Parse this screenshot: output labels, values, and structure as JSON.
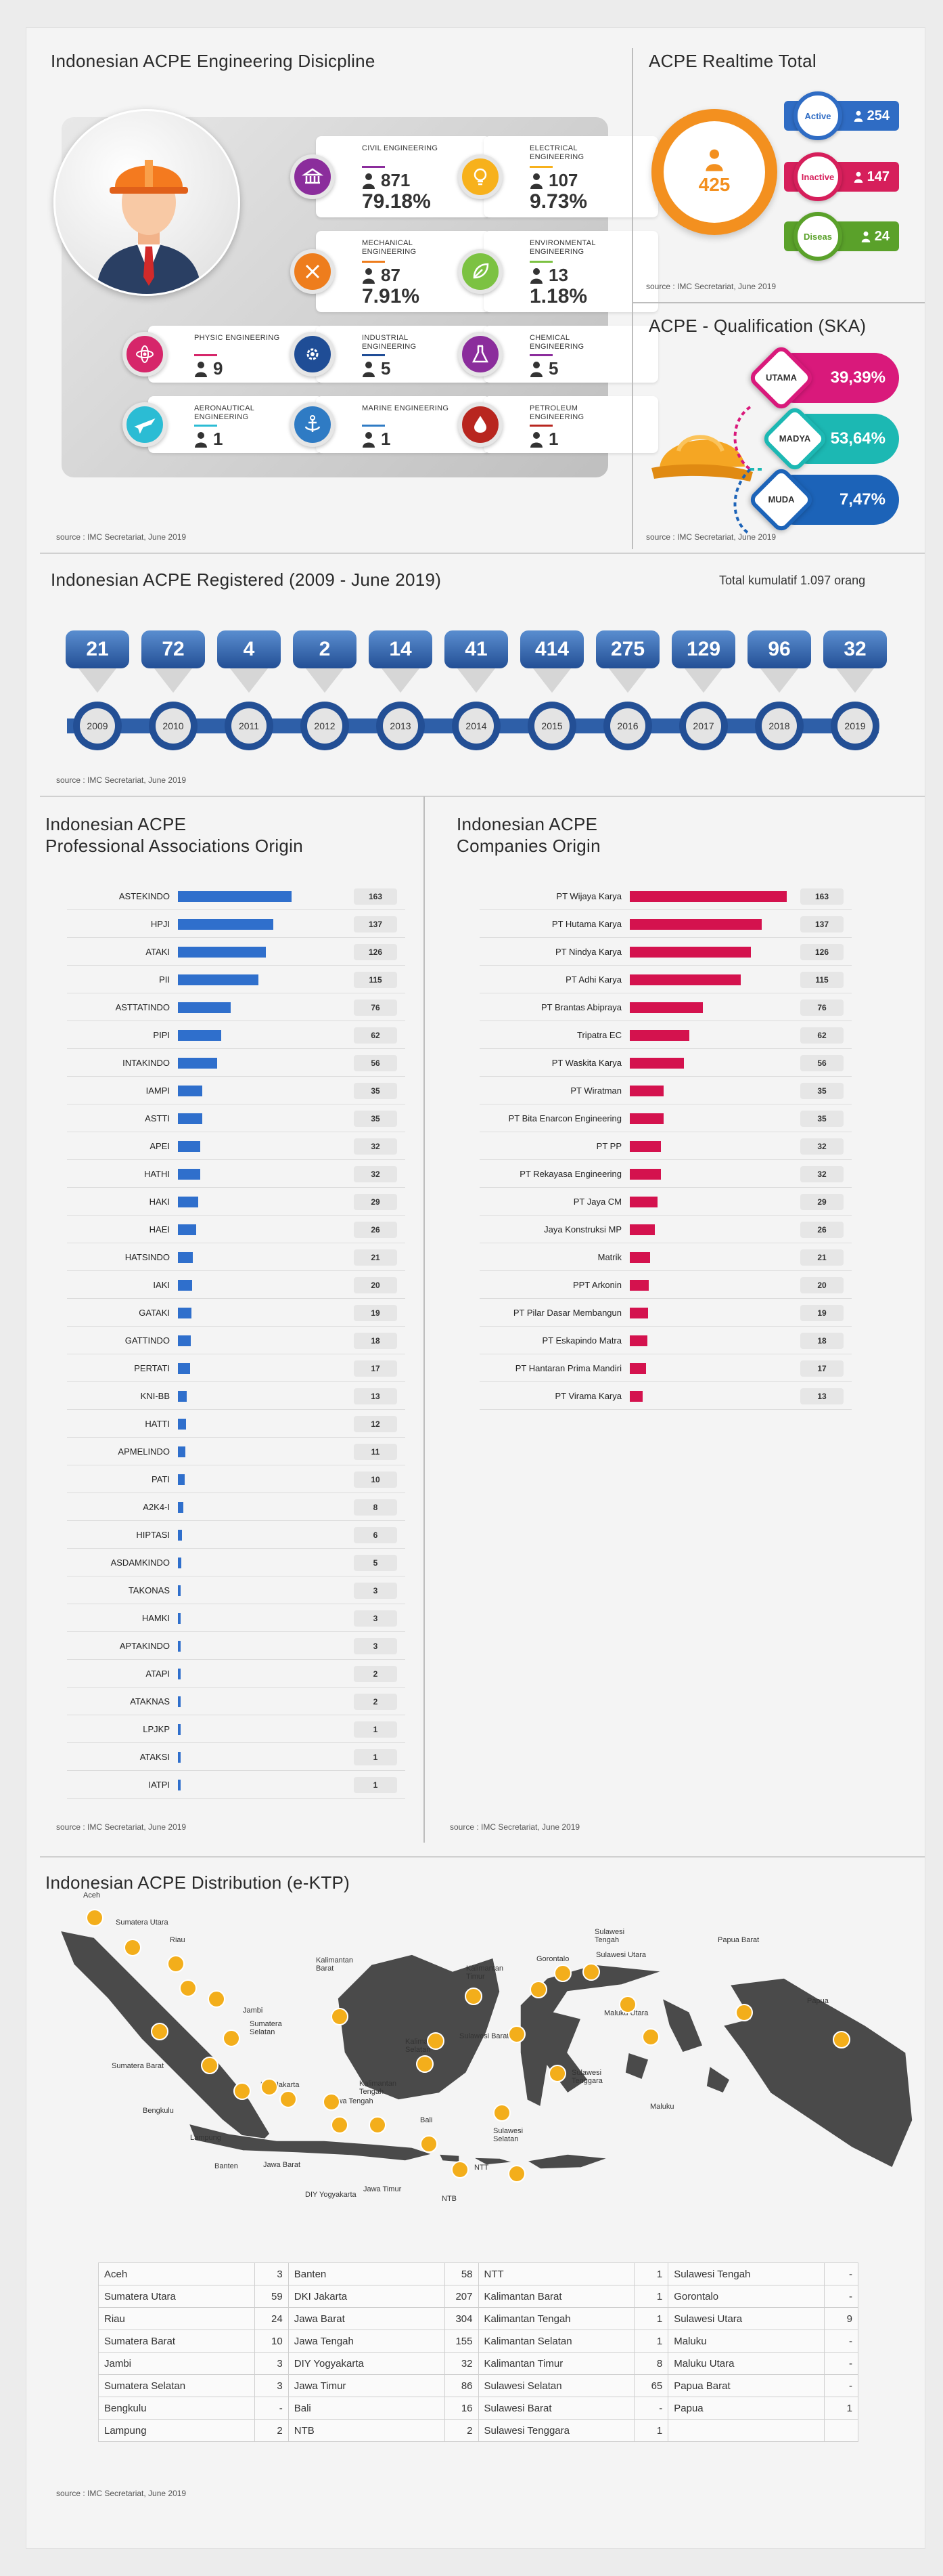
{
  "disciplines": {
    "title": "Indonesian ACPE Engineering Disicpline",
    "source": "source : IMC Secretariat, June 2019",
    "items": [
      {
        "name": "CIVIL ENGINEERING",
        "count": "871",
        "pct": "79.18%",
        "color": "#8b2d9c",
        "icon": "civil-icon"
      },
      {
        "name": "ELECTRICAL ENGINEERING",
        "count": "107",
        "pct": "9.73%",
        "color": "#f7b11c",
        "icon": "lightbulb-icon"
      },
      {
        "name": "MECHANICAL ENGINEERING",
        "count": "87",
        "pct": "7.91%",
        "color": "#ee7d1d",
        "icon": "tools-icon"
      },
      {
        "name": "ENVIRONMENTAL ENGINEERING",
        "count": "13",
        "pct": "1.18%",
        "color": "#7cc242",
        "icon": "leaf-icon"
      },
      {
        "name": "PHYSIC ENGINEERING",
        "count": "9",
        "pct": "",
        "color": "#d6266a",
        "icon": "atom-icon"
      },
      {
        "name": "INDUSTRIAL ENGINEERING",
        "count": "5",
        "pct": "",
        "color": "#1f4d96",
        "icon": "gear-icon"
      },
      {
        "name": "CHEMICAL ENGINEERING",
        "count": "5",
        "pct": "",
        "color": "#8b2d9c",
        "icon": "flask-icon"
      },
      {
        "name": "AERONAUTICAL ENGINEERING",
        "count": "1",
        "pct": "",
        "color": "#2bbcd4",
        "icon": "plane-icon"
      },
      {
        "name": "MARINE ENGINEERING",
        "count": "1",
        "pct": "",
        "color": "#2f7bc4",
        "icon": "anchor-icon"
      },
      {
        "name": "PETROLEUM ENGINEERING",
        "count": "1",
        "pct": "",
        "color": "#b8261f",
        "icon": "drop-icon"
      }
    ]
  },
  "realtime": {
    "title": "ACPE Realtime Total",
    "total": "425",
    "source": "source : IMC Secretariat, June 2019",
    "status": [
      {
        "label": "Active",
        "value": "254",
        "color": "#2f6cc4"
      },
      {
        "label": "Inactive",
        "value": "147",
        "color": "#d61f5b"
      },
      {
        "label": "Diseas",
        "value": "24",
        "color": "#5aa12a"
      }
    ]
  },
  "qualification": {
    "title": "ACPE - Qualification (SKA)",
    "source": "source : IMC Secretariat, June 2019",
    "levels": [
      {
        "label": "UTAMA",
        "value": "39,39%",
        "color": "#d9197b"
      },
      {
        "label": "MADYA",
        "value": "53,64%",
        "color": "#1cb8b3"
      },
      {
        "label": "MUDA",
        "value": "7,47%",
        "color": "#1c63b8"
      }
    ]
  },
  "registered": {
    "title": "Indonesian ACPE Registered (2009 - June 2019)",
    "cumulative": "Total kumulatif 1.097 orang",
    "source": "source : IMC Secretariat, June 2019"
  },
  "associations": {
    "title_line1": "Indonesian ACPE",
    "title_line2": "Professional Associations Origin",
    "source": "source : IMC Secretariat, June 2019",
    "color": "#2f6fcc"
  },
  "companies": {
    "title_line1": "Indonesian ACPE",
    "title_line2": "Companies Origin",
    "source": "source : IMC Secretariat, June 2019",
    "color": "#d4124e"
  },
  "distribution": {
    "title": "Indonesian ACPE Distribution (e-KTP)",
    "source": "source : IMC Secretariat, June 2019",
    "map_labels": [
      "Aceh",
      "Sumatera Utara",
      "Riau",
      "Jambi",
      "Sumatera Selatan",
      "Sumatera Barat",
      "Bengkulu",
      "Lampung",
      "Banten",
      "DKI Jakarta",
      "Jawa Barat",
      "Jawa Tengah",
      "DIY Yogyakarta",
      "Jawa Timur",
      "Bali",
      "NTB",
      "NTT",
      "Kalimantan Barat",
      "Kalimantan Tengah",
      "Kalimantan Selatan",
      "Kalimantan Timur",
      "Sulawesi Tengah",
      "Gorontalo",
      "Sulawesi Utara",
      "Sulawesi Barat",
      "Sulawesi Tenggara",
      "Sulawesi Selatan",
      "Maluku Utara",
      "Maluku",
      "Papua Barat",
      "Papua"
    ],
    "table": [
      [
        [
          "Aceh",
          "3"
        ],
        [
          "Banten",
          "58"
        ],
        [
          "NTT",
          "1"
        ],
        [
          "Sulawesi Tengah",
          "-"
        ]
      ],
      [
        [
          "Sumatera Utara",
          "59"
        ],
        [
          "DKI Jakarta",
          "207"
        ],
        [
          "Kalimantan Barat",
          "1"
        ],
        [
          "Gorontalo",
          "-"
        ]
      ],
      [
        [
          "Riau",
          "24"
        ],
        [
          "Jawa Barat",
          "304"
        ],
        [
          "Kalimantan Tengah",
          "1"
        ],
        [
          "Sulawesi Utara",
          "9"
        ]
      ],
      [
        [
          "Sumatera Barat",
          "10"
        ],
        [
          "Jawa Tengah",
          "155"
        ],
        [
          "Kalimantan Selatan",
          "1"
        ],
        [
          "Maluku",
          "-"
        ]
      ],
      [
        [
          "Jambi",
          "3"
        ],
        [
          "DIY Yogyakarta",
          "32"
        ],
        [
          "Kalimantan Timur",
          "8"
        ],
        [
          "Maluku Utara",
          "-"
        ]
      ],
      [
        [
          "Sumatera Selatan",
          "3"
        ],
        [
          "Jawa Timur",
          "86"
        ],
        [
          "Sulawesi Selatan",
          "65"
        ],
        [
          "Papua Barat",
          "-"
        ]
      ],
      [
        [
          "Bengkulu",
          "-"
        ],
        [
          "Bali",
          "16"
        ],
        [
          "Sulawesi Barat",
          "-"
        ],
        [
          "Papua",
          "1"
        ]
      ],
      [
        [
          "Lampung",
          "2"
        ],
        [
          "NTB",
          "2"
        ],
        [
          "Sulawesi Tenggara",
          "1"
        ],
        [
          "",
          ""
        ]
      ]
    ]
  },
  "chart_data": [
    {
      "type": "bar",
      "categories": [
        "2009",
        "2010",
        "2011",
        "2012",
        "2013",
        "2014",
        "2015",
        "2016",
        "2017",
        "2018",
        "2019"
      ],
      "values": [
        21,
        72,
        4,
        2,
        14,
        41,
        414,
        275,
        129,
        96,
        32
      ]
    },
    {
      "type": "bar",
      "categories": [
        "ASTEKINDO",
        "HPJI",
        "ATAKI",
        "PII",
        "ASTTATINDO",
        "PIPI",
        "INTAKINDO",
        "IAMPI",
        "ASTTI",
        "APEI",
        "HATHI",
        "HAKI",
        "HAEI",
        "HATSINDO",
        "IAKI",
        "GATAKI",
        "GATTINDO",
        "PERTATI",
        "KNI-BB",
        "HATTI",
        "APMELINDO",
        "PATI",
        "A2K4-I",
        "HIPTASI",
        "ASDAMKINDO",
        "TAKONAS",
        "HAMKI",
        "APTAKINDO",
        "ATAPI",
        "ATAKNAS",
        "LPJKP",
        "ATAKSI",
        "IATPI"
      ],
      "values": [
        163,
        137,
        126,
        115,
        76,
        62,
        56,
        35,
        35,
        32,
        32,
        29,
        26,
        21,
        20,
        19,
        18,
        17,
        13,
        12,
        11,
        10,
        8,
        6,
        5,
        3,
        3,
        3,
        2,
        2,
        1,
        1,
        1
      ]
    },
    {
      "type": "bar",
      "categories": [
        "PT Wijaya Karya",
        "PT Hutama Karya",
        "PT Nindya Karya",
        "PT Adhi Karya",
        "PT Brantas Abipraya",
        "Tripatra EC",
        "PT Waskita Karya",
        "PT Wiratman",
        "PT Bita Enarcon Engineering",
        "PT PP",
        "PT Rekayasa Engineering",
        "PT Jaya CM",
        "Jaya Konstruksi MP",
        "Matrik",
        "PPT Arkonin",
        "PT Pilar Dasar Membangun",
        "PT Eskapindo Matra",
        "PT Hantaran Prima Mandiri",
        "PT Virama Karya"
      ],
      "values": [
        163,
        137,
        126,
        115,
        76,
        62,
        56,
        35,
        35,
        32,
        32,
        29,
        26,
        21,
        20,
        19,
        18,
        17,
        13
      ]
    }
  ]
}
